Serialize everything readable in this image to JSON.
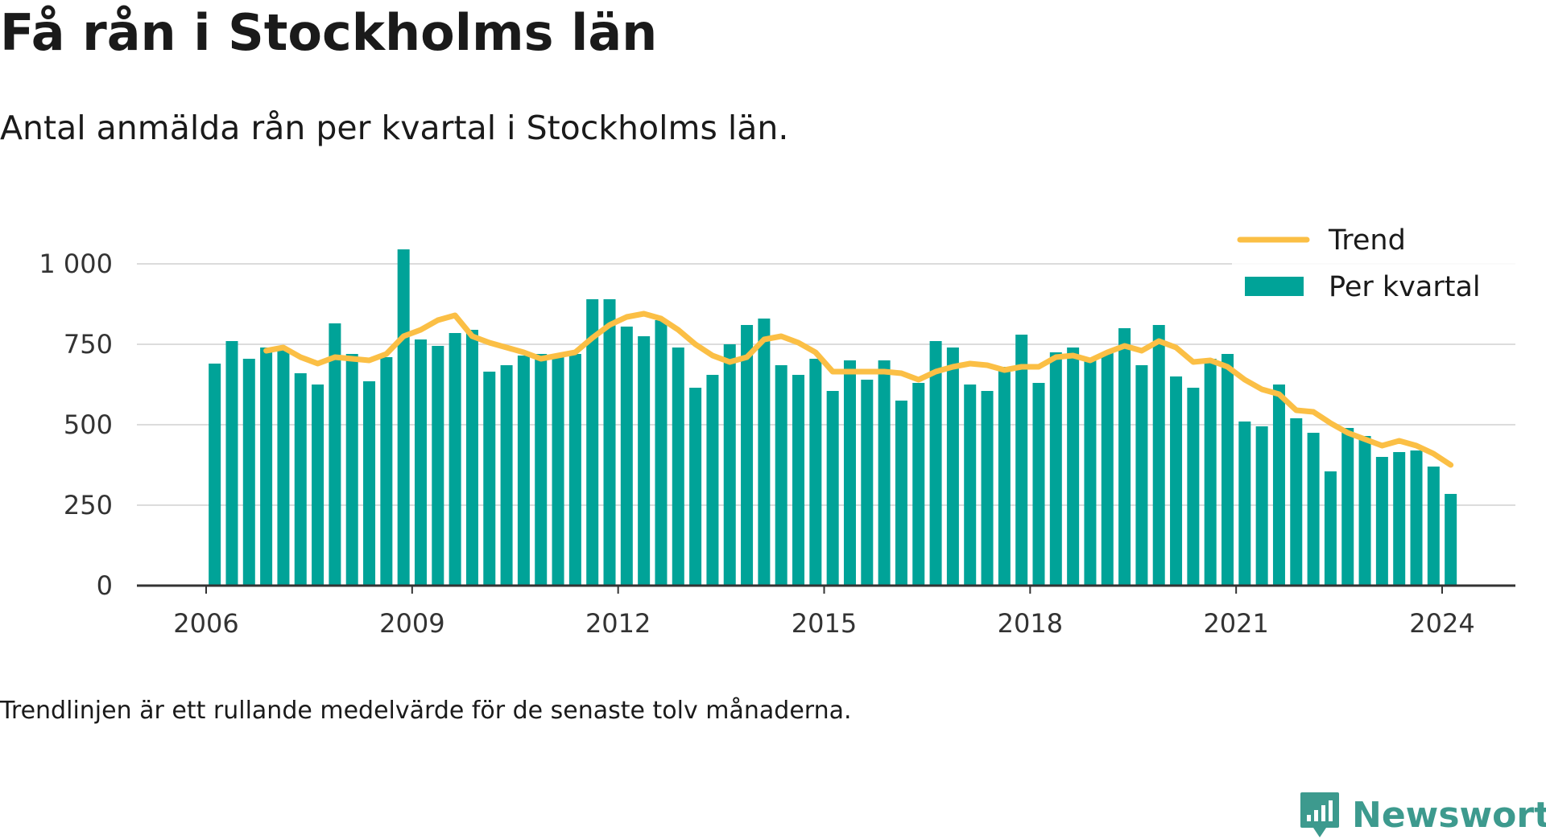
{
  "header": {
    "title": "Få rån i Stockholms län",
    "subtitle": "Antal anmälda rån per kvartal i Stockholms län."
  },
  "footnote": "Trendlinjen är ett rullande medelvärde för de senaste tolv månaderna.",
  "brand": {
    "name": "Newsworthy",
    "icon": "newsworthy-logo-icon",
    "color": "#3d9a8e"
  },
  "colors": {
    "bars": "#00a398",
    "trend": "#fbbf45",
    "grid": "#dcdcdc",
    "axis": "#333333"
  },
  "chart_data": {
    "type": "bar",
    "title": "Få rån i Stockholms län",
    "subtitle": "Antal anmälda rån per kvartal i Stockholms län.",
    "xlabel": "",
    "ylabel": "",
    "ylim": [
      0,
      1000
    ],
    "yticks": [
      0,
      250,
      500,
      750,
      1000
    ],
    "ytick_labels": [
      "0",
      "250",
      "500",
      "750",
      "1 000"
    ],
    "xticks": [
      2006,
      2009,
      2012,
      2015,
      2018,
      2021,
      2024
    ],
    "xtick_labels": [
      "2006",
      "2009",
      "2012",
      "2015",
      "2018",
      "2021",
      "2024"
    ],
    "grid": "horizontal",
    "legend": {
      "placement": "top-right",
      "entries": [
        "Trend",
        "Per kvartal"
      ]
    },
    "series": [
      {
        "name": "Per kvartal",
        "type": "bar",
        "x": [
          "2006-01-01",
          "2006-04-01",
          "2006-07-01",
          "2006-10-01",
          "2007-01-01",
          "2007-04-01",
          "2007-07-01",
          "2007-10-01",
          "2008-01-01",
          "2008-04-01",
          "2008-07-01",
          "2008-10-01",
          "2009-01-01",
          "2009-04-01",
          "2009-07-01",
          "2009-10-01",
          "2010-01-01",
          "2010-04-01",
          "2010-07-01",
          "2010-10-01",
          "2011-01-01",
          "2011-04-01",
          "2011-07-01",
          "2011-10-01",
          "2012-01-01",
          "2012-04-01",
          "2012-07-01",
          "2012-10-01",
          "2013-01-01",
          "2013-04-01",
          "2013-07-01",
          "2013-10-01",
          "2014-01-01",
          "2014-04-01",
          "2014-07-01",
          "2014-10-01",
          "2015-01-01",
          "2015-04-01",
          "2015-07-01",
          "2015-10-01",
          "2016-01-01",
          "2016-04-01",
          "2016-07-01",
          "2016-10-01",
          "2017-01-01",
          "2017-04-01",
          "2017-07-01",
          "2017-10-01",
          "2018-01-01",
          "2018-04-01",
          "2018-07-01",
          "2018-10-01",
          "2019-01-01",
          "2019-04-01",
          "2019-07-01",
          "2019-10-01",
          "2020-01-01",
          "2020-04-01",
          "2020-07-01",
          "2020-10-01",
          "2021-01-01",
          "2021-04-01",
          "2021-07-01",
          "2021-10-01",
          "2022-01-01",
          "2022-04-01",
          "2022-07-01",
          "2022-10-01",
          "2023-01-01",
          "2023-04-01",
          "2023-07-01",
          "2023-10-01",
          "2024-01-01"
        ],
        "values": [
          690,
          760,
          705,
          740,
          735,
          660,
          625,
          815,
          720,
          635,
          710,
          1045,
          765,
          745,
          785,
          795,
          665,
          685,
          715,
          720,
          715,
          720,
          890,
          890,
          805,
          775,
          825,
          740,
          615,
          655,
          750,
          810,
          830,
          685,
          655,
          705,
          605,
          700,
          640,
          700,
          575,
          630,
          760,
          740,
          625,
          605,
          680,
          780,
          630,
          725,
          740,
          705,
          725,
          800,
          685,
          810,
          650,
          615,
          705,
          720,
          510,
          495,
          625,
          520,
          475,
          355,
          490,
          465,
          400,
          415,
          420,
          370,
          285
        ]
      },
      {
        "name": "Trend",
        "type": "line",
        "x": [
          "2006-10-01",
          "2007-01-01",
          "2007-04-01",
          "2007-07-01",
          "2007-10-01",
          "2008-01-01",
          "2008-04-01",
          "2008-07-01",
          "2008-10-01",
          "2009-01-01",
          "2009-04-01",
          "2009-07-01",
          "2009-10-01",
          "2010-01-01",
          "2010-04-01",
          "2010-07-01",
          "2010-10-01",
          "2011-01-01",
          "2011-04-01",
          "2011-07-01",
          "2011-10-01",
          "2012-01-01",
          "2012-04-01",
          "2012-07-01",
          "2012-10-01",
          "2013-01-01",
          "2013-04-01",
          "2013-07-01",
          "2013-10-01",
          "2014-01-01",
          "2014-04-01",
          "2014-07-01",
          "2014-10-01",
          "2015-01-01",
          "2015-04-01",
          "2015-07-01",
          "2015-10-01",
          "2016-01-01",
          "2016-04-01",
          "2016-07-01",
          "2016-10-01",
          "2017-01-01",
          "2017-04-01",
          "2017-07-01",
          "2017-10-01",
          "2018-01-01",
          "2018-04-01",
          "2018-07-01",
          "2018-10-01",
          "2019-01-01",
          "2019-04-01",
          "2019-07-01",
          "2019-10-01",
          "2020-01-01",
          "2020-04-01",
          "2020-07-01",
          "2020-10-01",
          "2021-01-01",
          "2021-04-01",
          "2021-07-01",
          "2021-10-01",
          "2022-01-01",
          "2022-04-01",
          "2022-07-01",
          "2022-10-01",
          "2023-01-01",
          "2023-04-01",
          "2023-07-01",
          "2023-10-01",
          "2024-01-01"
        ],
        "values": [
          730,
          740,
          710,
          690,
          710,
          705,
          700,
          720,
          775,
          795,
          825,
          840,
          775,
          755,
          740,
          725,
          705,
          715,
          725,
          770,
          810,
          835,
          845,
          830,
          795,
          750,
          715,
          695,
          710,
          765,
          775,
          755,
          725,
          665,
          665,
          665,
          665,
          660,
          640,
          665,
          680,
          690,
          685,
          670,
          680,
          680,
          710,
          715,
          700,
          725,
          745,
          730,
          760,
          740,
          695,
          700,
          680,
          640,
          610,
          595,
          545,
          540,
          505,
          475,
          455,
          435,
          450,
          435,
          410,
          375
        ]
      }
    ]
  }
}
